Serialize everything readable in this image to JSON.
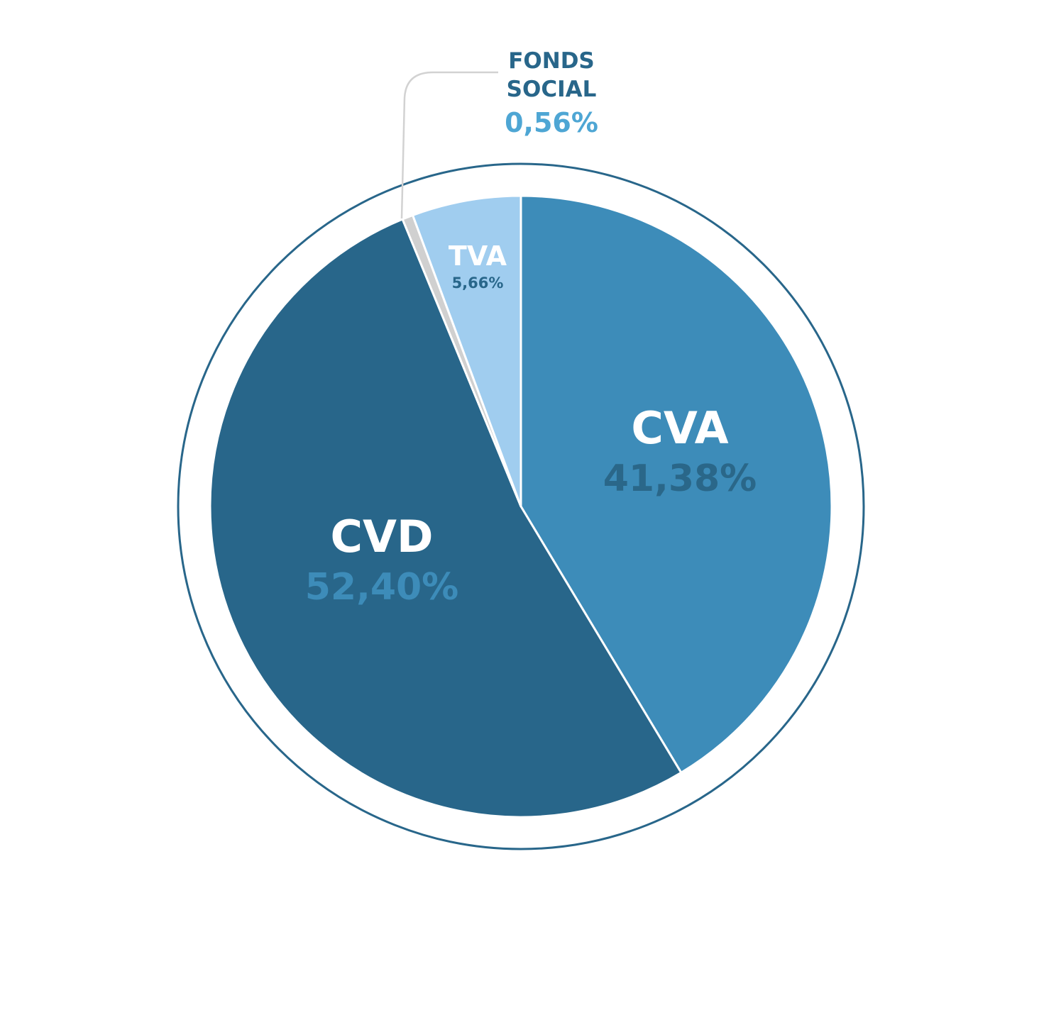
{
  "chart_data": {
    "type": "pie",
    "start_angle_deg": 0,
    "direction": "clockwise",
    "slices": [
      {
        "label": "CVA",
        "value": 41.38,
        "value_label": "41,38%",
        "color": "#3d8cb9",
        "label_color": "#ffffff",
        "value_color": "#2a6789"
      },
      {
        "label": "CVD",
        "value": 52.4,
        "value_label": "52,40%",
        "color": "#28668a",
        "label_color": "#ffffff",
        "value_color": "#3d8cb9"
      },
      {
        "label": "FONDS SOCIAL",
        "label_lines": [
          "FONDS",
          "SOCIAL"
        ],
        "value": 0.56,
        "value_label": "0,56%",
        "color": "#d0d0d0",
        "label_color": "#28668a",
        "value_color": "#4ea6d4"
      },
      {
        "label": "TVA",
        "value": 5.66,
        "value_label": "5,66%",
        "color": "#a0cdef",
        "label_color": "#ffffff",
        "value_color": "#28668a"
      }
    ],
    "outer_ring_color": "#28668a",
    "leader_line_color": "#d2d2d2"
  }
}
